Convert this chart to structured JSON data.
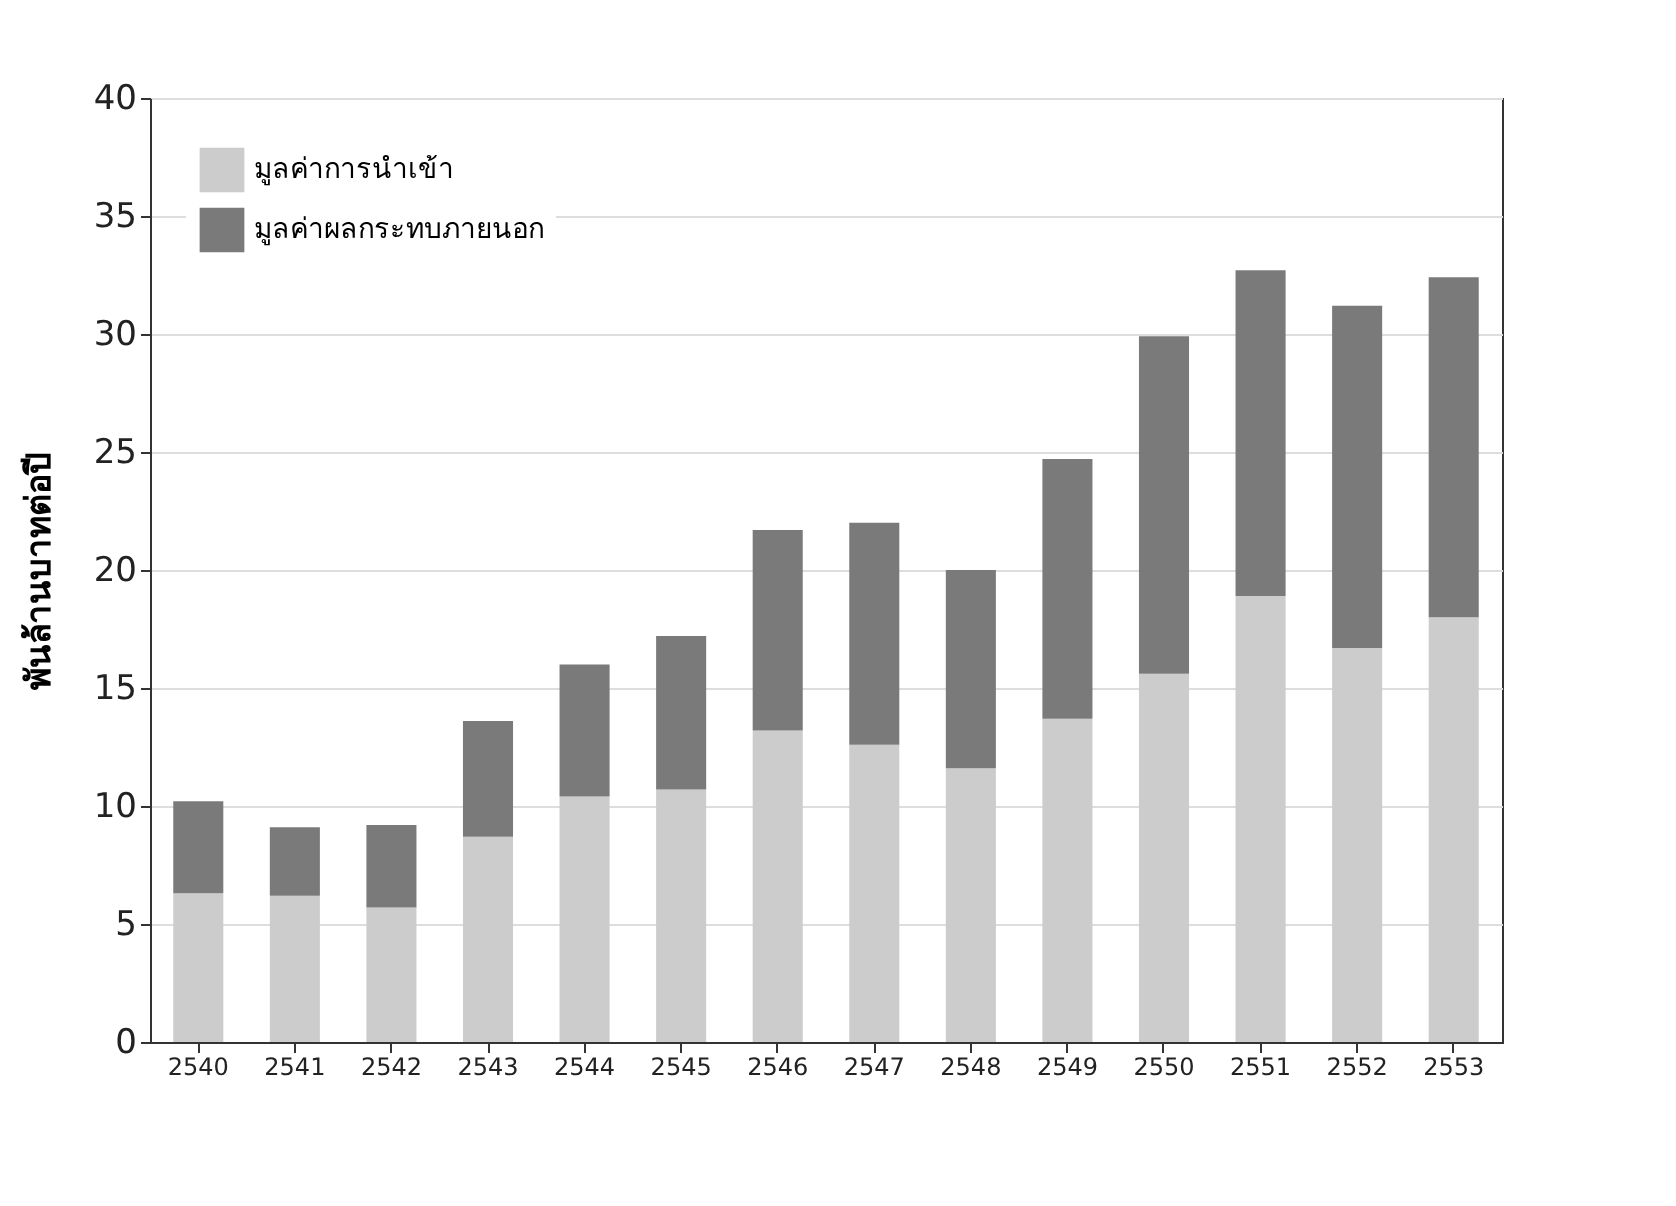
{
  "chart_data": {
    "type": "bar",
    "stacked": true,
    "ylabel": "พันล้านบาทต่อปี",
    "categories": [
      "2540",
      "2541",
      "2542",
      "2543",
      "2544",
      "2545",
      "2546",
      "2547",
      "2548",
      "2549",
      "2550",
      "2551",
      "2552",
      "2553"
    ],
    "series": [
      {
        "name": "มูลค่าการนำเข้า",
        "color": "#cccccc",
        "values": [
          6.3,
          6.2,
          5.7,
          8.7,
          10.4,
          10.7,
          13.2,
          12.6,
          11.6,
          13.7,
          15.6,
          18.9,
          16.7,
          18.0
        ]
      },
      {
        "name": "มูลค่าผลกระทบภายนอก",
        "color": "#7a7a7a",
        "values": [
          3.9,
          2.9,
          3.5,
          4.9,
          5.6,
          6.5,
          8.5,
          9.4,
          8.4,
          11.0,
          14.3,
          13.8,
          14.5,
          14.4
        ]
      }
    ],
    "ylim": [
      0,
      40
    ],
    "yticks": [
      0,
      5,
      10,
      15,
      20,
      25,
      30,
      35,
      40
    ],
    "grid": "y",
    "legend": "top left"
  }
}
